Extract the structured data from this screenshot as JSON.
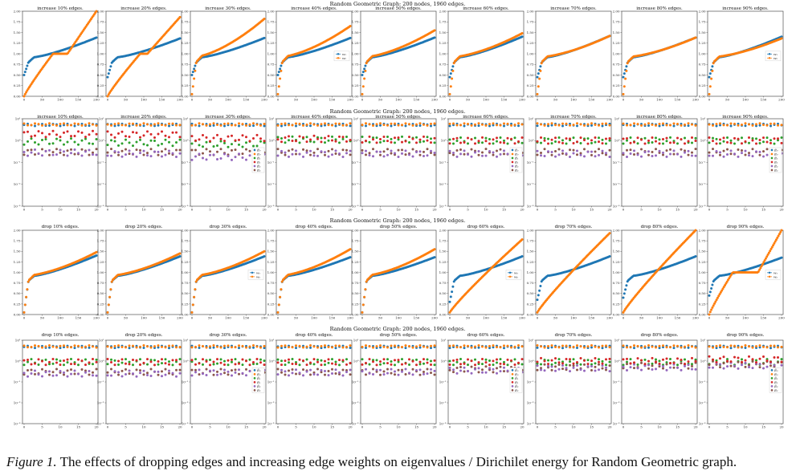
{
  "caption": {
    "label": "Figure 1.",
    "text": " The effects of dropping edges and increasing edge weights on eigenvalues / Dirichilet energy for Random Geometric graph."
  },
  "colors": {
    "blue": "#1f77b4",
    "orange": "#ff7f0e",
    "green": "#2ca02c",
    "red": "#d62728",
    "purple": "#9467bd",
    "brown": "#8c564b"
  },
  "chart_data": [
    {
      "group": "increase-eigenvalues",
      "type": "scatter",
      "suptitle": "Random Geometric Graph: 200 nodes, 1960 edges.",
      "panel_titles": [
        "increase 10% edges.",
        "increase 20% edges.",
        "increase 30% edges.",
        "increase 40% edges.",
        "increase 50% edges.",
        "increase 60% edges.",
        "increase 70% edges.",
        "increase 80% edges.",
        "increase 90% edges."
      ],
      "xlim": [
        0,
        200
      ],
      "ylim": [
        0,
        2
      ],
      "x_ticks": [
        "0",
        "50",
        "100",
        "150",
        "200"
      ],
      "y_ticks": [
        "0.00",
        "0.25",
        "0.50",
        "0.75",
        "1.00",
        "1.25",
        "1.50",
        "1.75",
        "2.00"
      ],
      "legend": [
        "w₁",
        "w₂"
      ],
      "legend_panels": [
        3,
        8
      ],
      "series_stats": {
        "w1_start": [
          0.5,
          0.45,
          0.5,
          0.5,
          0.5,
          0.45,
          0.45,
          0.45,
          0.45
        ],
        "w1_end": [
          1.38,
          1.36,
          1.37,
          1.37,
          1.38,
          1.4,
          1.42,
          1.38,
          1.4
        ],
        "w2_end": [
          2.0,
          1.86,
          1.82,
          1.65,
          1.55,
          1.48,
          1.42,
          1.38,
          1.36
        ],
        "w2_plateau": [
          0.2,
          0.1,
          0,
          0,
          0,
          0,
          0,
          0,
          0
        ]
      }
    },
    {
      "group": "increase-energy",
      "type": "scatter",
      "suptitle": "Random Geometric Graph: 200 nodes, 1960 edges.",
      "panel_titles": [
        "increase 10% edges.",
        "increase 20% edges.",
        "increase 30% edges.",
        "increase 40% edges.",
        "increase 50% edges.",
        "increase 60% edges.",
        "increase 70% edges.",
        "increase 80% edges.",
        "increase 90% edges."
      ],
      "xlim": [
        0,
        20
      ],
      "ylog": true,
      "ylim_exp": [
        -3,
        1
      ],
      "x_ticks": [
        "0",
        "5",
        "10",
        "15",
        "20"
      ],
      "y_ticks": [
        "10⁻³",
        "10⁻²",
        "10⁻¹",
        "10⁰",
        "10¹"
      ],
      "legend": [
        "Ē₀",
        "E₀",
        "Ē₁",
        "E₁",
        "Ē₂",
        "E₂"
      ],
      "legend_panels": [
        2,
        5,
        8
      ],
      "series_levels": {
        "blue_orange": 5.5,
        "red": [
          2.0,
          1.9,
          1.3,
          1.2,
          1.1,
          1.0,
          1.0,
          1.0,
          1.0
        ],
        "green": [
          0.9,
          0.8,
          0.7,
          1.1,
          1.1,
          1.0,
          1.0,
          1.0,
          1.0
        ],
        "purple": [
          0.28,
          0.25,
          0.18,
          0.25,
          0.25,
          0.25,
          0.25,
          0.25,
          0.25
        ],
        "brown": [
          0.3,
          0.3,
          0.3,
          0.3,
          0.3,
          0.3,
          0.3,
          0.3,
          0.3
        ]
      }
    },
    {
      "group": "drop-eigenvalues",
      "type": "scatter",
      "suptitle": "Random Geometric Graph: 200 nodes, 1960 edges.",
      "panel_titles": [
        "drop 10% edges.",
        "drop 20% edges.",
        "drop 30% edges.",
        "drop 40% edges.",
        "drop 50% edges.",
        "drop 60% edges.",
        "drop 70% edges.",
        "drop 80% edges.",
        "drop 90% edges."
      ],
      "xlim": [
        0,
        200
      ],
      "ylim": [
        0,
        2
      ],
      "x_ticks": [
        "0",
        "50",
        "100",
        "150",
        "200"
      ],
      "y_ticks": [
        "0.00",
        "0.25",
        "0.50",
        "0.75",
        "1.00",
        "1.25",
        "1.50",
        "1.75",
        "2.00"
      ],
      "legend": [
        "w₁",
        "w₂"
      ],
      "legend_panels": [
        2,
        5,
        8
      ],
      "series_stats": {
        "w1_start": [
          0.05,
          0.05,
          0.05,
          0.05,
          0.05,
          0.3,
          0.35,
          0.4,
          0.45
        ],
        "w1_end": [
          1.4,
          1.38,
          1.38,
          1.36,
          1.36,
          1.38,
          1.38,
          1.38,
          1.35
        ],
        "w2_end": [
          1.48,
          1.45,
          1.5,
          1.55,
          1.55,
          1.78,
          1.93,
          2.0,
          2.0
        ],
        "w2_plateau": [
          0,
          0,
          0,
          0,
          0,
          0,
          0,
          0,
          0.35
        ]
      }
    },
    {
      "group": "drop-energy",
      "type": "scatter",
      "suptitle": "Random Geometric Graph: 200 nodes, 1960 edges.",
      "panel_titles": [
        "drop 10% edges.",
        "drop 20% edges.",
        "drop 30% edges.",
        "drop 40% edges.",
        "drop 50% edges.",
        "drop 60% edges.",
        "drop 70% edges.",
        "drop 80% edges.",
        "drop 90% edges."
      ],
      "xlim": [
        0,
        20
      ],
      "ylog": true,
      "ylim_exp": [
        -3,
        1
      ],
      "x_ticks": [
        "0",
        "5",
        "10",
        "15",
        "20"
      ],
      "y_ticks": [
        "10⁻³",
        "10⁻²",
        "10⁻¹",
        "10⁰",
        "10¹"
      ],
      "legend": [
        "Ē₀",
        "E₀",
        "Ē₁",
        "E₁",
        "Ē₂",
        "E₂"
      ],
      "legend_panels": [
        2,
        5,
        8
      ],
      "series_levels": {
        "blue_orange": 5.0,
        "red": [
          0.9,
          0.9,
          0.9,
          0.9,
          0.9,
          0.9,
          1.0,
          1.0,
          1.2
        ],
        "green": [
          0.9,
          0.9,
          0.9,
          0.9,
          0.9,
          0.9,
          0.9,
          0.9,
          0.9
        ],
        "purple": [
          0.25,
          0.25,
          0.28,
          0.28,
          0.3,
          0.35,
          0.45,
          0.5,
          0.6
        ],
        "brown": [
          0.3,
          0.3,
          0.3,
          0.3,
          0.3,
          0.4,
          0.5,
          0.6,
          0.7
        ]
      }
    }
  ]
}
